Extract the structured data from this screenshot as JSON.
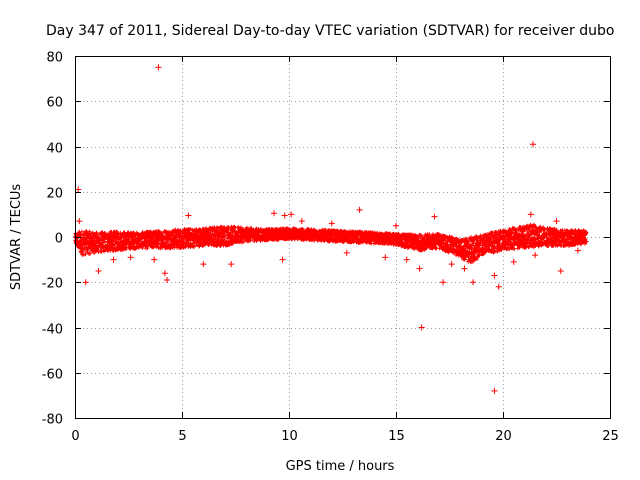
{
  "chart_data": {
    "type": "scatter",
    "title": "Day 347 of 2011, Sidereal Day-to-day VTEC variation (SDTVAR) for receiver dubo",
    "xlabel": "GPS time / hours",
    "ylabel": "SDTVAR / TECUs",
    "xlim": [
      0,
      25
    ],
    "ylim": [
      -80,
      80
    ],
    "xticks": [
      0,
      5,
      10,
      15,
      20,
      25
    ],
    "yticks": [
      -80,
      -60,
      -40,
      -20,
      0,
      20,
      40,
      60,
      80
    ],
    "grid": true,
    "marker": "+",
    "color": "#ff0000",
    "band": {
      "x_start": 0.0,
      "x_end": 23.9,
      "upper": [
        [
          0.0,
          1.5
        ],
        [
          0.3,
          3
        ],
        [
          1.0,
          2
        ],
        [
          2.0,
          2.5
        ],
        [
          3.0,
          2
        ],
        [
          4.0,
          3
        ],
        [
          5.0,
          3.5
        ],
        [
          6.0,
          4
        ],
        [
          7.0,
          5
        ],
        [
          8.0,
          4
        ],
        [
          9.0,
          3.5
        ],
        [
          10.0,
          4
        ],
        [
          11.0,
          3.5
        ],
        [
          12.0,
          3
        ],
        [
          13.0,
          2.5
        ],
        [
          14.0,
          2
        ],
        [
          15.0,
          1.5
        ],
        [
          16.0,
          1
        ],
        [
          17.0,
          1.5
        ],
        [
          18.0,
          -1
        ],
        [
          19.0,
          1
        ],
        [
          20.0,
          3
        ],
        [
          21.0,
          5
        ],
        [
          21.5,
          6
        ],
        [
          22.0,
          4
        ],
        [
          23.0,
          3
        ],
        [
          23.9,
          3
        ]
      ],
      "lower": [
        [
          0.0,
          -3
        ],
        [
          0.3,
          -8
        ],
        [
          1.0,
          -7
        ],
        [
          2.0,
          -6
        ],
        [
          3.0,
          -5
        ],
        [
          4.0,
          -5
        ],
        [
          5.0,
          -5
        ],
        [
          6.0,
          -4
        ],
        [
          7.0,
          -4
        ],
        [
          8.0,
          -2
        ],
        [
          9.0,
          -1.5
        ],
        [
          10.0,
          -1
        ],
        [
          11.0,
          -1.5
        ],
        [
          12.0,
          -2
        ],
        [
          13.0,
          -2.5
        ],
        [
          14.0,
          -3
        ],
        [
          15.0,
          -3.5
        ],
        [
          16.0,
          -6
        ],
        [
          17.0,
          -5
        ],
        [
          18.0,
          -9
        ],
        [
          18.5,
          -12
        ],
        [
          19.0,
          -8
        ],
        [
          20.0,
          -6
        ],
        [
          21.0,
          -5
        ],
        [
          22.0,
          -4
        ],
        [
          23.0,
          -4
        ],
        [
          23.9,
          -3
        ]
      ]
    },
    "outliers": [
      {
        "x": 3.9,
        "y": 75
      },
      {
        "x": 21.4,
        "y": 41
      },
      {
        "x": 16.2,
        "y": -40
      },
      {
        "x": 19.6,
        "y": -68
      },
      {
        "x": 0.15,
        "y": 21
      },
      {
        "x": 0.2,
        "y": 7
      },
      {
        "x": 5.3,
        "y": 9.5
      },
      {
        "x": 9.3,
        "y": 10.5
      },
      {
        "x": 9.8,
        "y": 9.5
      },
      {
        "x": 10.1,
        "y": 10
      },
      {
        "x": 13.3,
        "y": 12
      },
      {
        "x": 16.8,
        "y": 9
      },
      {
        "x": 21.3,
        "y": 10
      },
      {
        "x": 0.5,
        "y": -20
      },
      {
        "x": 1.1,
        "y": -15
      },
      {
        "x": 4.3,
        "y": -19
      },
      {
        "x": 16.1,
        "y": -14
      },
      {
        "x": 17.2,
        "y": -20
      },
      {
        "x": 18.6,
        "y": -20
      },
      {
        "x": 19.6,
        "y": -17
      },
      {
        "x": 19.8,
        "y": -22
      },
      {
        "x": 22.7,
        "y": -15
      },
      {
        "x": 1.8,
        "y": -10
      },
      {
        "x": 2.6,
        "y": -9
      },
      {
        "x": 3.7,
        "y": -10
      },
      {
        "x": 4.2,
        "y": -16
      },
      {
        "x": 6.0,
        "y": -12
      },
      {
        "x": 7.3,
        "y": -12
      },
      {
        "x": 9.7,
        "y": -10
      },
      {
        "x": 12.7,
        "y": -7
      },
      {
        "x": 14.5,
        "y": -9
      },
      {
        "x": 15.5,
        "y": -10
      },
      {
        "x": 17.6,
        "y": -12
      },
      {
        "x": 18.2,
        "y": -14
      },
      {
        "x": 20.5,
        "y": -11
      },
      {
        "x": 21.5,
        "y": -8
      },
      {
        "x": 23.5,
        "y": -6
      },
      {
        "x": 10.6,
        "y": 7
      },
      {
        "x": 12.0,
        "y": 6
      },
      {
        "x": 15.0,
        "y": 5
      },
      {
        "x": 22.5,
        "y": 7
      }
    ]
  }
}
